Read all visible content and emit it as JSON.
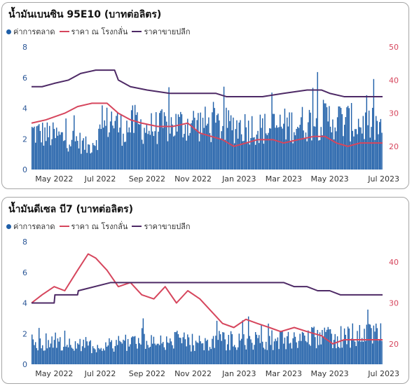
{
  "colors": {
    "market": "#1f5fa8",
    "refinery": "#d6465d",
    "retail": "#4e2a66",
    "left_tick": "#2b5797",
    "right_tick": "#d6465d",
    "x_tick": "#333333"
  },
  "chart_data": [
    {
      "type": "bar",
      "title": "น้ำมันเบนซิน 95E10 (บาทต่อลิตร)",
      "series_labels": [
        "ค่าการตลาด",
        "ราคา ณ โรงกลั่น",
        "ราคาขายปลีก"
      ],
      "x_tick_labels": [
        "May 2022",
        "Jul 2022",
        "Sep 2022",
        "Nov 2022",
        "Jan 2023",
        "Mar 2023",
        "May 2023",
        "Jul 2023"
      ],
      "y_left_ticks": [
        0,
        2,
        4,
        6,
        8
      ],
      "y_right_ticks": [
        20,
        30,
        40,
        50
      ],
      "y_left_range": [
        0,
        8
      ],
      "y_right_range": [
        13,
        50
      ],
      "x_range": [
        "2022-04-01",
        "2023-07-10"
      ],
      "series": [
        {
          "name": "ค่าการตลาด",
          "kind": "bars",
          "axis": "left",
          "points": [
            [
              "2022-04-01",
              2.6
            ],
            [
              "2022-05-01",
              2.3
            ],
            [
              "2022-06-01",
              2.0
            ],
            [
              "2022-06-15",
              1.5
            ],
            [
              "2022-07-01",
              2.5
            ],
            [
              "2022-07-15",
              3.5
            ],
            [
              "2022-08-01",
              2.7
            ],
            [
              "2022-08-15",
              3.2
            ],
            [
              "2022-09-01",
              2.8
            ],
            [
              "2022-10-01",
              3.0
            ],
            [
              "2022-11-01",
              3.2
            ],
            [
              "2022-12-01",
              3.0
            ],
            [
              "2023-01-01",
              3.0
            ],
            [
              "2023-02-01",
              2.8
            ],
            [
              "2023-03-01",
              3.0
            ],
            [
              "2023-04-01",
              3.2
            ],
            [
              "2023-05-01",
              3.5
            ],
            [
              "2023-06-01",
              3.2
            ],
            [
              "2023-07-10",
              2.9
            ]
          ]
        },
        {
          "name": "ราคา ณ โรงกลั่น",
          "kind": "line",
          "axis": "right",
          "points": [
            [
              "2022-04-01",
              27
            ],
            [
              "2022-04-20",
              28
            ],
            [
              "2022-05-15",
              30
            ],
            [
              "2022-06-01",
              32
            ],
            [
              "2022-06-20",
              33
            ],
            [
              "2022-07-10",
              33
            ],
            [
              "2022-07-25",
              30
            ],
            [
              "2022-08-10",
              28
            ],
            [
              "2022-08-25",
              27
            ],
            [
              "2022-09-15",
              26
            ],
            [
              "2022-10-05",
              26
            ],
            [
              "2022-10-25",
              27
            ],
            [
              "2022-11-10",
              24
            ],
            [
              "2022-11-25",
              23
            ],
            [
              "2022-12-10",
              22
            ],
            [
              "2022-12-25",
              20
            ],
            [
              "2023-01-10",
              21
            ],
            [
              "2023-01-25",
              22
            ],
            [
              "2023-02-15",
              22
            ],
            [
              "2023-03-01",
              21
            ],
            [
              "2023-03-20",
              22
            ],
            [
              "2023-04-10",
              23
            ],
            [
              "2023-04-25",
              23
            ],
            [
              "2023-05-10",
              21
            ],
            [
              "2023-05-25",
              20
            ],
            [
              "2023-06-10",
              21
            ],
            [
              "2023-07-10",
              21
            ]
          ]
        },
        {
          "name": "ราคาขายปลีก",
          "kind": "line",
          "axis": "right",
          "points": [
            [
              "2022-04-01",
              38
            ],
            [
              "2022-04-15",
              38
            ],
            [
              "2022-05-01",
              39
            ],
            [
              "2022-05-20",
              40
            ],
            [
              "2022-06-05",
              42
            ],
            [
              "2022-06-25",
              43
            ],
            [
              "2022-07-01",
              43
            ],
            [
              "2022-07-20",
              43
            ],
            [
              "2022-07-25",
              40
            ],
            [
              "2022-08-10",
              38
            ],
            [
              "2022-09-01",
              37
            ],
            [
              "2022-10-01",
              36
            ],
            [
              "2022-11-01",
              36
            ],
            [
              "2022-12-01",
              36
            ],
            [
              "2022-12-15",
              35
            ],
            [
              "2023-01-01",
              35
            ],
            [
              "2023-02-01",
              35
            ],
            [
              "2023-03-01",
              36
            ],
            [
              "2023-04-01",
              37
            ],
            [
              "2023-04-20",
              37
            ],
            [
              "2023-05-01",
              36
            ],
            [
              "2023-05-20",
              35
            ],
            [
              "2023-06-01",
              35
            ],
            [
              "2023-07-10",
              35
            ]
          ]
        }
      ]
    },
    {
      "type": "bar",
      "title": "น้ำมันดีเซล บี7 (บาทต่อลิตร)",
      "series_labels": [
        "ค่าการตลาด",
        "ราคา ณ โรงกลั่น",
        "ราคาขายปลีก"
      ],
      "x_tick_labels": [
        "May 2022",
        "Jul 2022",
        "Sep 2022",
        "Nov 2022",
        "Jan 2023",
        "Mar 2023",
        "May 2023",
        "Jul 2023"
      ],
      "y_left_ticks": [
        0,
        2,
        4,
        6,
        8
      ],
      "y_right_ticks": [
        20,
        30,
        40
      ],
      "y_right_range": [
        15,
        45
      ],
      "y_left_range": [
        0,
        8
      ],
      "x_range": [
        "2022-04-01",
        "2023-07-10"
      ],
      "series": [
        {
          "name": "ค่าการตลาด",
          "kind": "bars",
          "axis": "left",
          "points": [
            [
              "2022-04-01",
              1.5
            ],
            [
              "2022-05-01",
              1.6
            ],
            [
              "2022-06-01",
              1.4
            ],
            [
              "2022-07-01",
              1.2
            ],
            [
              "2022-08-01",
              1.6
            ],
            [
              "2022-09-01",
              1.5
            ],
            [
              "2022-10-01",
              1.7
            ],
            [
              "2022-11-01",
              1.5
            ],
            [
              "2022-12-01",
              1.6
            ],
            [
              "2023-01-01",
              1.7
            ],
            [
              "2023-02-01",
              1.6
            ],
            [
              "2023-03-01",
              1.7
            ],
            [
              "2023-04-01",
              1.8
            ],
            [
              "2023-05-01",
              1.9
            ],
            [
              "2023-06-01",
              1.9
            ],
            [
              "2023-07-10",
              2.0
            ]
          ]
        },
        {
          "name": "ราคา ณ โรงกลั่น",
          "kind": "line",
          "axis": "right",
          "points": [
            [
              "2022-04-01",
              30
            ],
            [
              "2022-04-15",
              32
            ],
            [
              "2022-05-01",
              34
            ],
            [
              "2022-05-15",
              33
            ],
            [
              "2022-06-01",
              38
            ],
            [
              "2022-06-15",
              42
            ],
            [
              "2022-06-25",
              41
            ],
            [
              "2022-07-10",
              38
            ],
            [
              "2022-07-25",
              34
            ],
            [
              "2022-08-10",
              35
            ],
            [
              "2022-08-25",
              32
            ],
            [
              "2022-09-10",
              31
            ],
            [
              "2022-09-25",
              34
            ],
            [
              "2022-10-10",
              30
            ],
            [
              "2022-10-25",
              33
            ],
            [
              "2022-11-10",
              31
            ],
            [
              "2022-11-25",
              28
            ],
            [
              "2022-12-10",
              25
            ],
            [
              "2022-12-25",
              24
            ],
            [
              "2023-01-10",
              26
            ],
            [
              "2023-01-25",
              25
            ],
            [
              "2023-02-10",
              24
            ],
            [
              "2023-02-25",
              23
            ],
            [
              "2023-03-15",
              24
            ],
            [
              "2023-04-01",
              23
            ],
            [
              "2023-04-20",
              22
            ],
            [
              "2023-05-05",
              20
            ],
            [
              "2023-05-20",
              21
            ],
            [
              "2023-06-10",
              21
            ],
            [
              "2023-07-10",
              21
            ]
          ]
        },
        {
          "name": "ราคาขายปลีก",
          "kind": "line",
          "axis": "right",
          "points": [
            [
              "2022-04-01",
              30
            ],
            [
              "2022-05-01",
              30
            ],
            [
              "2022-05-02",
              32
            ],
            [
              "2022-06-01",
              32
            ],
            [
              "2022-06-02",
              33
            ],
            [
              "2022-07-15",
              35
            ],
            [
              "2022-08-01",
              35
            ],
            [
              "2022-09-01",
              35
            ],
            [
              "2022-10-01",
              35
            ],
            [
              "2022-11-01",
              35
            ],
            [
              "2022-12-01",
              35
            ],
            [
              "2023-01-01",
              35
            ],
            [
              "2023-02-01",
              35
            ],
            [
              "2023-03-01",
              35
            ],
            [
              "2023-03-15",
              34
            ],
            [
              "2023-04-01",
              34
            ],
            [
              "2023-04-15",
              33
            ],
            [
              "2023-05-01",
              33
            ],
            [
              "2023-05-15",
              32
            ],
            [
              "2023-06-01",
              32
            ],
            [
              "2023-07-10",
              32
            ]
          ]
        }
      ]
    }
  ]
}
